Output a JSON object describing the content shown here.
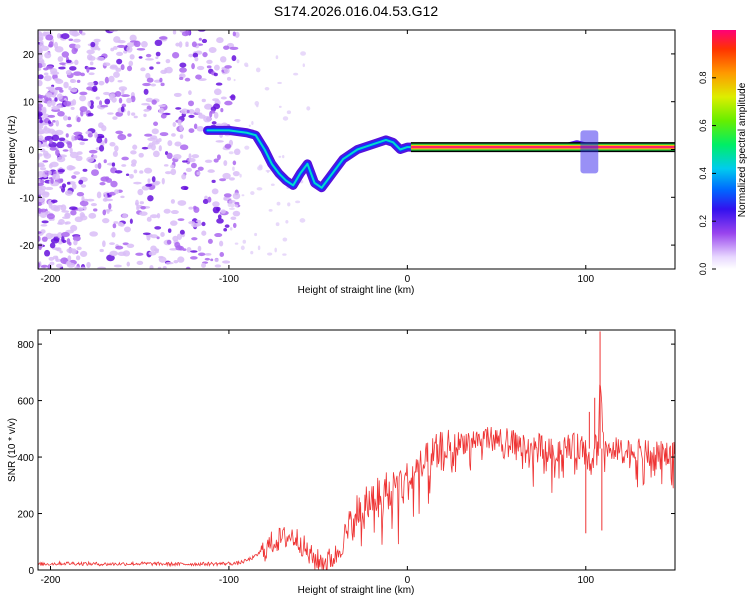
{
  "title": "S174.2026.016.04.53.G12",
  "chart_data": [
    {
      "type": "heatmap",
      "xlabel": "Height of straight line (km)",
      "ylabel": "Frequency (Hz)",
      "xlim": [
        -207,
        150
      ],
      "ylim": [
        -25,
        25
      ],
      "xticks": [
        -200,
        -100,
        0,
        100
      ],
      "yticks": [
        -20,
        -10,
        0,
        10,
        20
      ],
      "colorbar": {
        "label": "Normalized spectral amplitude",
        "range": [
          0,
          1
        ],
        "ticks": [
          "0.0",
          "0.2",
          "0.4",
          "0.6",
          "0.8"
        ]
      },
      "ridge_track": {
        "x": [
          -112,
          -100,
          -90,
          -85,
          -80,
          -76,
          -72,
          -68,
          -64,
          -60,
          -56,
          -52,
          -48,
          -44,
          -40,
          -36,
          -32,
          -28,
          -24,
          -20,
          -16,
          -12,
          -8,
          -4,
          0,
          5,
          10,
          20,
          40,
          60,
          80,
          90,
          95,
          100,
          105,
          110,
          130,
          150
        ],
        "y": [
          4,
          4,
          3.5,
          3,
          0,
          -3,
          -5,
          -6.5,
          -7.5,
          -5,
          -3,
          -7,
          -8,
          -6,
          -4,
          -2,
          -1,
          0,
          0.5,
          1,
          1.5,
          2,
          1.5,
          0,
          0.5,
          0.5,
          0.5,
          0.5,
          0.5,
          0.5,
          0.5,
          0.5,
          1,
          0.5,
          0.5,
          0.5,
          0.5,
          0.5
        ]
      }
    },
    {
      "type": "line",
      "xlabel": "Height of straight line (km)",
      "ylabel": "SNR (10 * v/v)",
      "xlim": [
        -207,
        150
      ],
      "ylim": [
        0,
        850
      ],
      "xticks": [
        -200,
        -100,
        0,
        100
      ],
      "yticks": [
        0,
        200,
        400,
        600,
        800
      ],
      "color": "#ee3333",
      "series": [
        {
          "x": [
            -207,
            -190,
            -170,
            -150,
            -130,
            -110,
            -95,
            -90,
            -85,
            -80,
            -75,
            -70,
            -65,
            -60,
            -55,
            -50,
            -45,
            -40,
            -35,
            -30,
            -25,
            -20,
            -15,
            -10,
            -5,
            0,
            5,
            10,
            15,
            20,
            25,
            30,
            35,
            40,
            45,
            50,
            55,
            60,
            65,
            70,
            75,
            80,
            85,
            90,
            95,
            100,
            103,
            105,
            107,
            108,
            110,
            115,
            120,
            130,
            140,
            150
          ],
          "y": [
            22,
            25,
            22,
            24,
            22,
            23,
            25,
            35,
            50,
            80,
            110,
            120,
            130,
            110,
            60,
            40,
            40,
            60,
            120,
            200,
            250,
            260,
            290,
            300,
            320,
            330,
            360,
            390,
            420,
            440,
            450,
            460,
            470,
            470,
            480,
            470,
            470,
            460,
            450,
            450,
            450,
            430,
            440,
            450,
            450,
            440,
            380,
            460,
            450,
            700,
            450,
            440,
            430,
            430,
            420,
            430
          ]
        }
      ]
    }
  ]
}
